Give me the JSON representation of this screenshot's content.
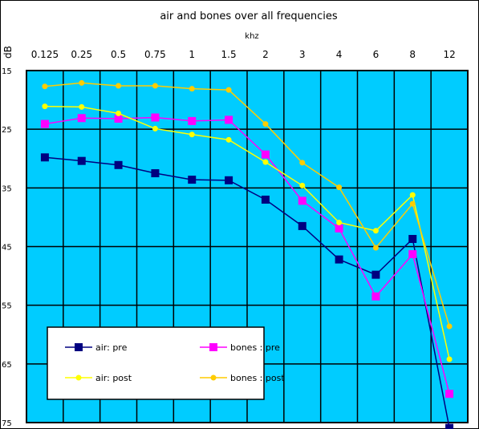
{
  "chart_data": {
    "type": "line",
    "title": "air and bones over all frequencies",
    "xlabel": "khz",
    "ylabel": "dB",
    "categories": [
      "0.125",
      "0.25",
      "0.5",
      "0.75",
      "1",
      "1.5",
      "2",
      "3",
      "4",
      "6",
      "8",
      "12"
    ],
    "ylim": [
      15,
      75
    ],
    "y_inverted": true,
    "yticks": [
      15,
      25,
      35,
      45,
      55,
      65,
      75
    ],
    "grid": true,
    "legend_position": "bottom-left",
    "plot_background": "#00ccff",
    "series": [
      {
        "name": "air: pre",
        "color": "#000080",
        "marker": "square",
        "values": [
          29.8,
          30.4,
          31.1,
          32.5,
          33.6,
          33.7,
          37.0,
          41.5,
          47.2,
          49.8,
          43.7,
          75.9
        ]
      },
      {
        "name": "bones : pre",
        "color": "#ff00ff",
        "marker": "square",
        "values": [
          24.1,
          23.1,
          23.2,
          23.0,
          23.6,
          23.4,
          29.3,
          37.2,
          41.9,
          53.5,
          46.3,
          70.1
        ]
      },
      {
        "name": "air: post",
        "color": "#ffff00",
        "marker": "dot",
        "values": [
          21.1,
          21.2,
          22.3,
          24.9,
          25.9,
          26.8,
          30.6,
          34.6,
          40.9,
          42.3,
          36.2,
          64.2
        ]
      },
      {
        "name": "bones : post",
        "color": "#ffcc00",
        "marker": "dot",
        "values": [
          17.7,
          17.1,
          17.6,
          17.6,
          18.1,
          18.3,
          24.1,
          30.7,
          34.9,
          45.2,
          37.7,
          58.6
        ]
      }
    ]
  }
}
